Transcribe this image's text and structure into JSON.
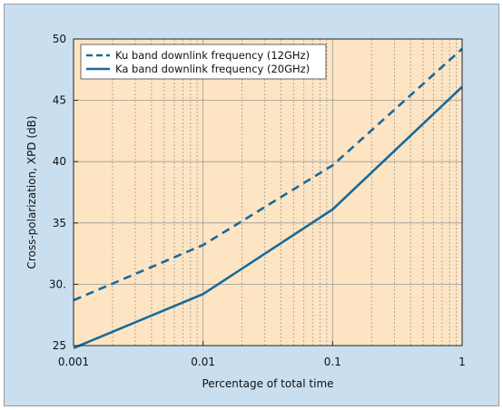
{
  "chart_data": {
    "type": "line",
    "xscale": "log",
    "xlim": [
      0.001,
      1
    ],
    "ylim": [
      25,
      50
    ],
    "xticks": [
      0.001,
      0.01,
      0.1,
      1
    ],
    "xtick_labels": [
      "0.001",
      "0.01",
      "0.1",
      "1"
    ],
    "yticks": [
      25,
      30,
      35,
      40,
      45,
      50
    ],
    "ytick_labels": [
      "25",
      "30.",
      "35",
      "40",
      "45",
      "50"
    ],
    "xlabel": "Percentage of total time",
    "ylabel": "Cross-polarization, XPD (dB)",
    "grid": true,
    "legend_position": "top-left",
    "series": [
      {
        "name": "Ku band downlink frequency (12GHz)",
        "style": "dashed",
        "color": "#1a6a99",
        "x": [
          0.001,
          0.01,
          0.1,
          1
        ],
        "y": [
          28.7,
          33.2,
          39.7,
          49.2
        ]
      },
      {
        "name": "Ka band downlink frequency (20GHz)",
        "style": "solid",
        "color": "#1a6a99",
        "x": [
          0.001,
          0.01,
          0.1,
          1
        ],
        "y": [
          24.8,
          29.2,
          36.1,
          46.1
        ]
      }
    ],
    "colors": {
      "figure_background": "#c9dff0",
      "plot_background": "#fde5c4",
      "grid": "#9a9a9a"
    }
  }
}
